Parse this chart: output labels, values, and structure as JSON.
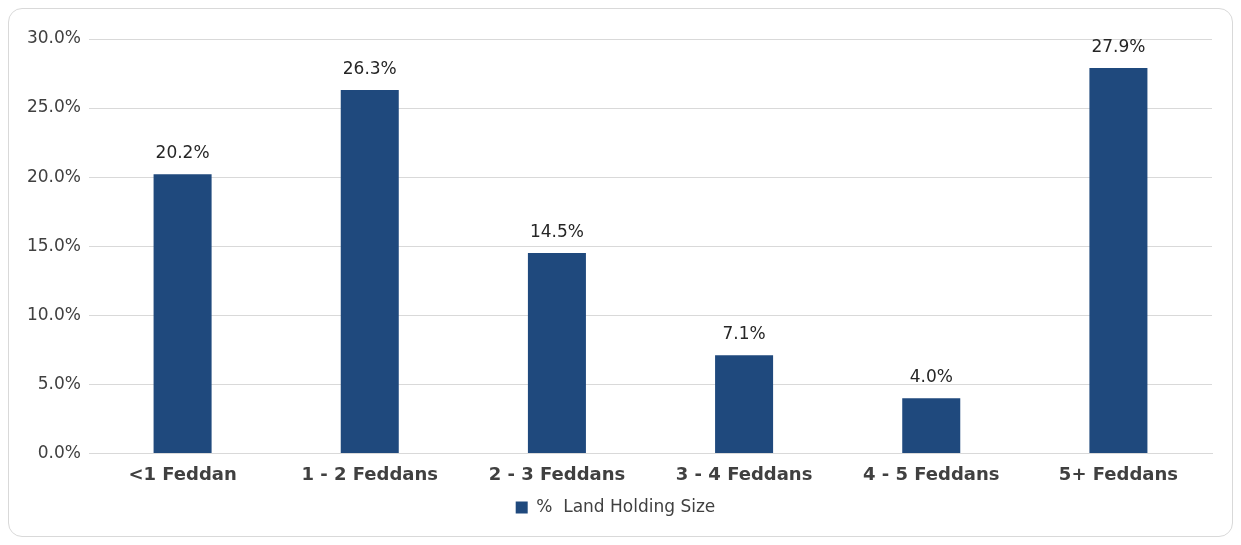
{
  "chart_data": {
    "type": "bar",
    "categories": [
      "<1 Feddan",
      "1 - 2 Feddans",
      "2 - 3 Feddans",
      "3 - 4 Feddans",
      "4 - 5 Feddans",
      "5+ Feddans"
    ],
    "series": [
      {
        "name": "%  Land Holding Size",
        "color": "#1f497d",
        "values": [
          20.2,
          26.3,
          14.5,
          7.1,
          4.0,
          27.9
        ],
        "value_labels": [
          "20.2%",
          "26.3%",
          "14.5%",
          "7.1%",
          "4.0%",
          "27.9%"
        ]
      }
    ],
    "ylim": [
      0,
      30
    ],
    "yticks": [
      {
        "value": 0,
        "label": "0.0%"
      },
      {
        "value": 5,
        "label": "5.0%"
      },
      {
        "value": 10,
        "label": "10.0%"
      },
      {
        "value": 15,
        "label": "15.0%"
      },
      {
        "value": 20,
        "label": "20.0%"
      },
      {
        "value": 25,
        "label": "25.0%"
      },
      {
        "value": 30,
        "label": "30.0%"
      }
    ],
    "grid": "y",
    "legend": "bottom"
  }
}
